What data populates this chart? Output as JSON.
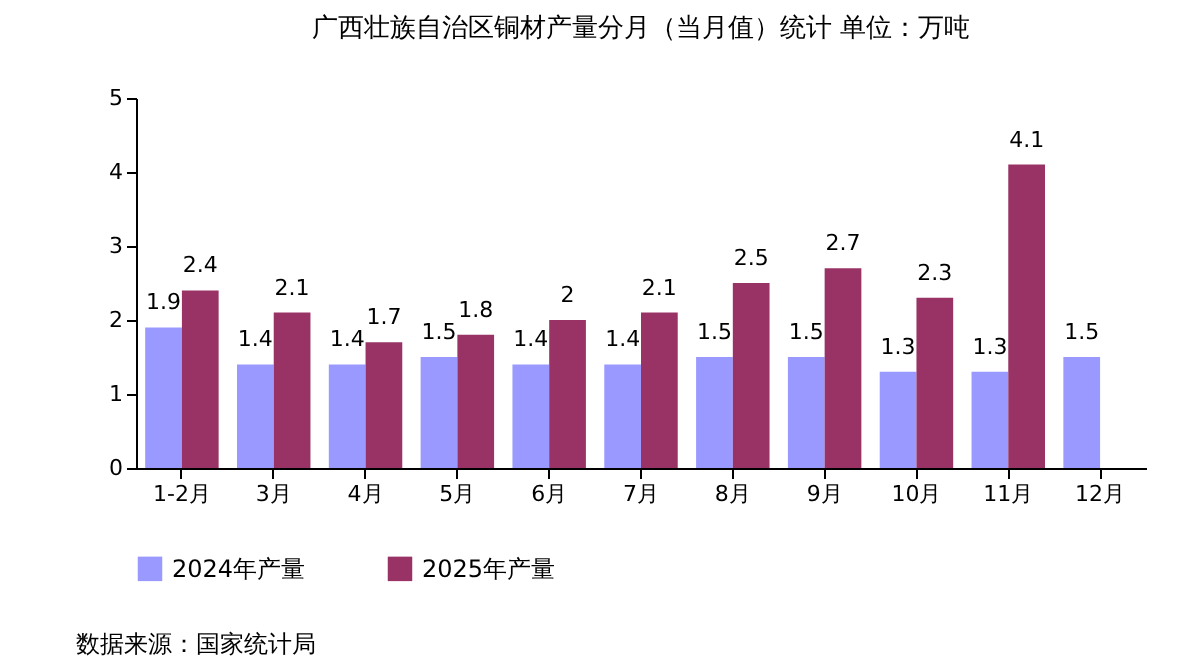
{
  "chart_data": {
    "type": "bar",
    "title": "广西壮族自治区铜材产量分月（当月值）统计  单位：万吨",
    "categories": [
      "1-2月",
      "3月",
      "4月",
      "5月",
      "6月",
      "7月",
      "8月",
      "9月",
      "10月",
      "11月",
      "12月"
    ],
    "series": [
      {
        "name": "2024年产量",
        "color": "#9999ff",
        "values": [
          1.9,
          1.4,
          1.4,
          1.5,
          1.4,
          1.4,
          1.5,
          1.5,
          1.3,
          1.3,
          1.5
        ]
      },
      {
        "name": "2025年产量",
        "color": "#993366",
        "values": [
          2.4,
          2.1,
          1.7,
          1.8,
          2,
          2.1,
          2.5,
          2.7,
          2.3,
          4.1,
          null
        ]
      }
    ],
    "ylim": [
      0,
      5
    ],
    "yticks": [
      0,
      1,
      2,
      3,
      4,
      5
    ],
    "grid": false,
    "legend": "bottom",
    "data_labels": true,
    "annotations": [
      "数据来源：国家统计局"
    ]
  }
}
